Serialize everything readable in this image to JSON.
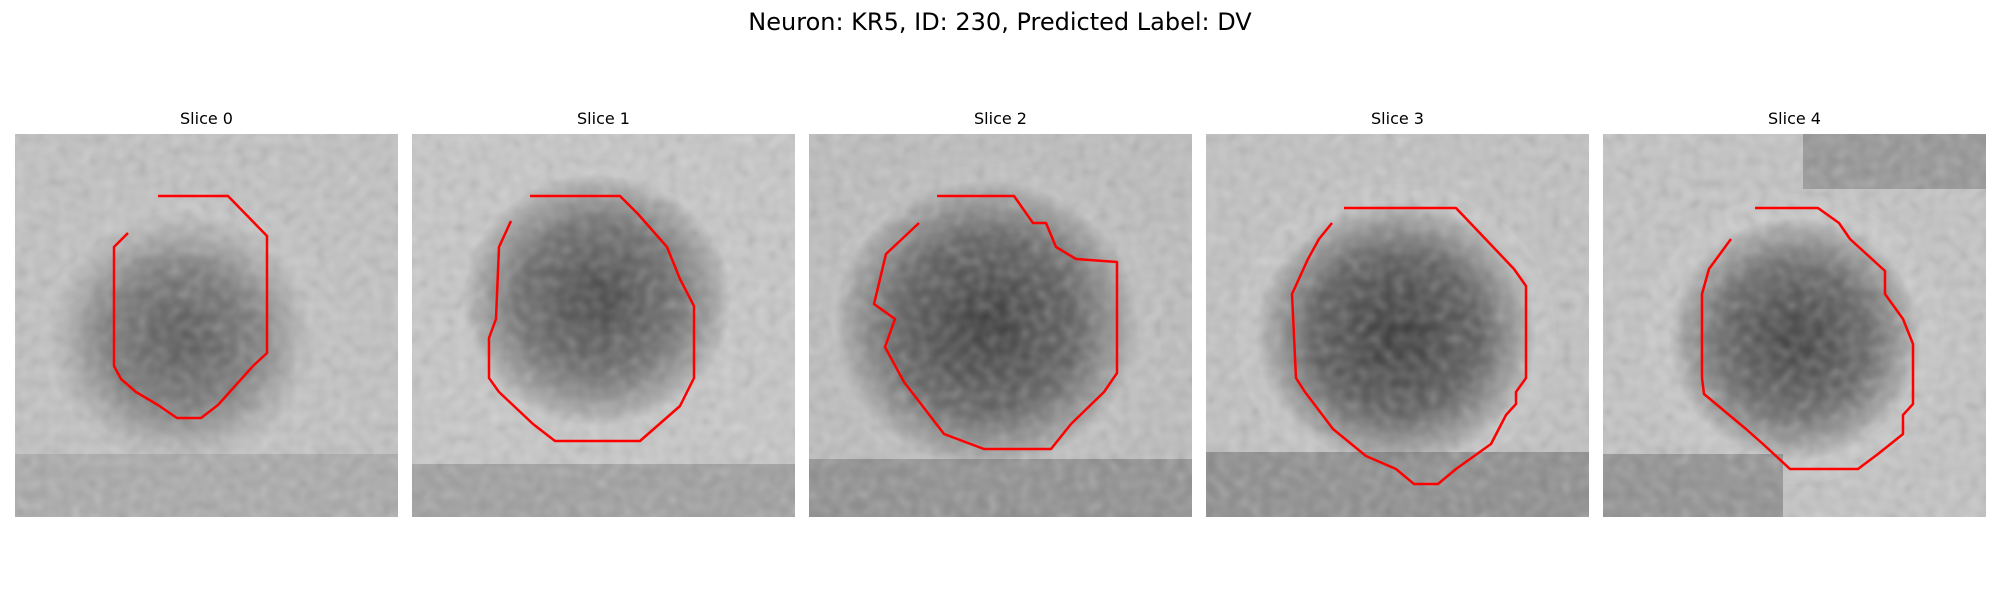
{
  "figure": {
    "title": "Neuron: KR5, ID: 230, Predicted Label: DV"
  },
  "panels": [
    {
      "title": "Slice 0"
    },
    {
      "title": "Slice 1"
    },
    {
      "title": "Slice 2"
    },
    {
      "title": "Slice 3"
    },
    {
      "title": "Slice 4"
    }
  ],
  "colors": {
    "contour": "#ff0000",
    "background": "#ffffff"
  }
}
